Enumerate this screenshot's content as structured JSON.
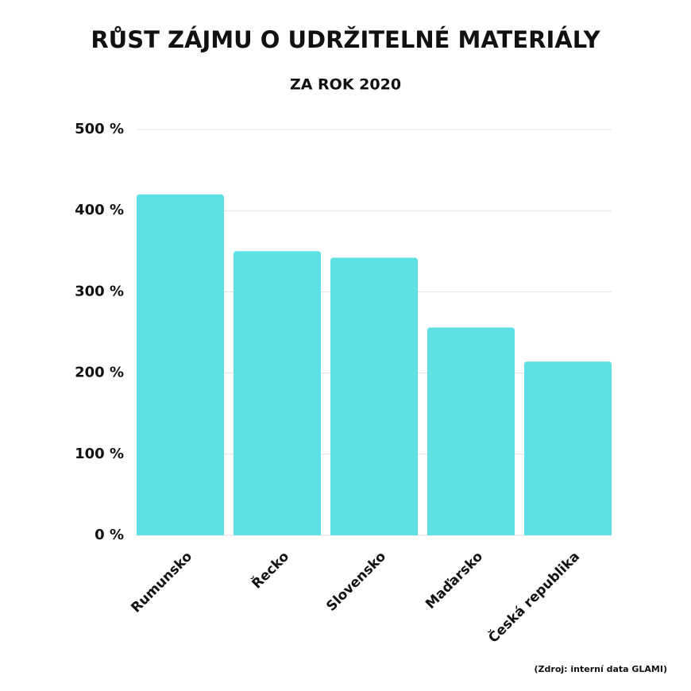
{
  "chart_data": {
    "type": "bar",
    "title": "RŮST ZÁJMU O UDRŽITELNÉ MATERIÁLY",
    "subtitle": "ZA ROK 2020",
    "categories": [
      "Rumunsko",
      "Řecko",
      "Slovensko",
      "Maďarsko",
      "Česká republika"
    ],
    "values": [
      420,
      350,
      342,
      256,
      214
    ],
    "color": "#5ce0e4",
    "ylim": [
      0,
      500
    ],
    "yticks": [
      {
        "value": 0,
        "label": "0 %"
      },
      {
        "value": 100,
        "label": "100 %"
      },
      {
        "value": 200,
        "label": "200 %"
      },
      {
        "value": 300,
        "label": "300 %"
      },
      {
        "value": 400,
        "label": "400 %"
      },
      {
        "value": 500,
        "label": "500 %"
      }
    ],
    "grid": true,
    "source": "(Zdroj: interní data GLAMI)"
  }
}
